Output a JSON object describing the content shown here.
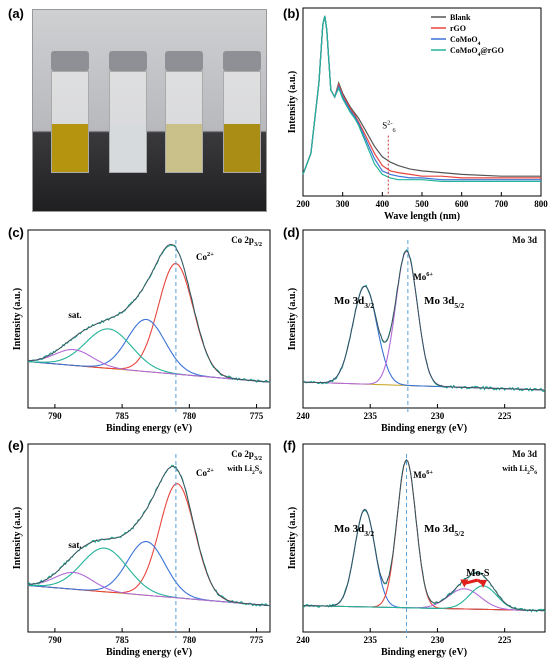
{
  "figure": {
    "panels": [
      {
        "id": "a",
        "label": "(a)"
      },
      {
        "id": "b",
        "label": "(b)"
      },
      {
        "id": "c",
        "label": "(c)"
      },
      {
        "id": "d",
        "label": "(d)"
      },
      {
        "id": "e",
        "label": "(e)"
      },
      {
        "id": "f",
        "label": "(f)"
      }
    ]
  },
  "photo": {
    "vials": [
      {
        "color": "#b59410"
      },
      {
        "color": "#d6dadc"
      },
      {
        "color": "#c9c08a"
      },
      {
        "color": "#a98d14"
      }
    ]
  },
  "chart_data": [
    {
      "id": "b",
      "type": "line",
      "xlabel": "Wave length (nm)",
      "ylabel": "Intensity (a.u.)",
      "xlim": [
        200,
        800
      ],
      "xticks": [
        200,
        300,
        400,
        500,
        600,
        700,
        800
      ],
      "legend_position": "top-right",
      "annotation": {
        "text": "S6 2-",
        "x": 415
      },
      "series": [
        {
          "name": "Blank",
          "color": "#555555",
          "x": [
            200,
            220,
            240,
            250,
            255,
            260,
            270,
            280,
            290,
            300,
            310,
            320,
            330,
            340,
            360,
            380,
            400,
            420,
            440,
            470,
            500,
            550,
            600,
            700,
            800
          ],
          "y": [
            0.1,
            0.22,
            0.62,
            0.95,
            1.0,
            0.92,
            0.58,
            0.54,
            0.62,
            0.56,
            0.52,
            0.48,
            0.45,
            0.42,
            0.34,
            0.26,
            0.2,
            0.17,
            0.15,
            0.13,
            0.12,
            0.11,
            0.1,
            0.09,
            0.09
          ]
        },
        {
          "name": "rGO",
          "color": "#e8453c",
          "x": [
            200,
            220,
            240,
            250,
            255,
            260,
            270,
            280,
            290,
            300,
            310,
            320,
            330,
            340,
            360,
            380,
            400,
            420,
            440,
            470,
            500,
            550,
            600,
            700,
            800
          ],
          "y": [
            0.1,
            0.22,
            0.62,
            0.95,
            1.0,
            0.92,
            0.58,
            0.54,
            0.61,
            0.55,
            0.51,
            0.47,
            0.44,
            0.4,
            0.31,
            0.22,
            0.15,
            0.12,
            0.11,
            0.1,
            0.09,
            0.09,
            0.08,
            0.08,
            0.08
          ]
        },
        {
          "name": "CoMoO4",
          "color": "#3b73d6",
          "x": [
            200,
            220,
            240,
            250,
            255,
            260,
            270,
            280,
            290,
            300,
            310,
            320,
            330,
            340,
            360,
            380,
            400,
            420,
            440,
            470,
            500,
            550,
            600,
            700,
            800
          ],
          "y": [
            0.1,
            0.22,
            0.62,
            0.95,
            1.0,
            0.92,
            0.58,
            0.54,
            0.6,
            0.54,
            0.5,
            0.46,
            0.43,
            0.39,
            0.29,
            0.19,
            0.12,
            0.1,
            0.09,
            0.08,
            0.08,
            0.07,
            0.07,
            0.07,
            0.07
          ]
        },
        {
          "name": "CoMoO4@rGO",
          "color": "#22b39a",
          "x": [
            200,
            220,
            240,
            250,
            255,
            260,
            270,
            280,
            290,
            300,
            310,
            320,
            330,
            340,
            360,
            380,
            400,
            420,
            440,
            470,
            500,
            550,
            600,
            700,
            800
          ],
          "y": [
            0.1,
            0.22,
            0.62,
            0.95,
            1.0,
            0.92,
            0.58,
            0.54,
            0.59,
            0.53,
            0.49,
            0.45,
            0.42,
            0.38,
            0.27,
            0.16,
            0.1,
            0.08,
            0.07,
            0.07,
            0.07,
            0.06,
            0.06,
            0.06,
            0.06
          ]
        }
      ]
    },
    {
      "id": "c",
      "type": "line",
      "title": "Co 2p3/2",
      "xlabel": "Binding energy (eV)",
      "ylabel": "Intensity (a.u.)",
      "xlim": [
        792,
        774
      ],
      "xticks": [
        790,
        785,
        780,
        775
      ],
      "vline": 781,
      "annotations": [
        {
          "text": "Co2+",
          "x": 779.5
        },
        {
          "text": "sat.",
          "x": 788.5
        }
      ],
      "peaks": [
        {
          "name": "Co2+",
          "center": 781.0,
          "height": 0.7,
          "width": 1.3,
          "color": "#e8453c"
        },
        {
          "name": "p2",
          "center": 783.2,
          "height": 0.33,
          "width": 1.4,
          "color": "#3b73d6"
        },
        {
          "name": "p3",
          "center": 786.0,
          "height": 0.25,
          "width": 1.7,
          "color": "#22b39a"
        },
        {
          "name": "sat.",
          "center": 788.6,
          "height": 0.1,
          "width": 1.4,
          "color": "#b36ad6"
        }
      ],
      "baseline": [
        [
          792,
          0.18
        ],
        [
          774,
          0.05
        ]
      ]
    },
    {
      "id": "d",
      "type": "line",
      "title": "Mo 3d",
      "xlabel": "Binding energy (eV)",
      "ylabel": "Intensity (a.u.)",
      "xlim": [
        240,
        222
      ],
      "xticks": [
        240,
        235,
        230,
        225
      ],
      "vline": 232.2,
      "annotations": [
        {
          "text": "Mo6+",
          "x": 231.8
        },
        {
          "text": "Mo 3d3/2",
          "x": 236.2
        },
        {
          "text": "Mo 3d5/2",
          "x": 229.5
        }
      ],
      "peaks": [
        {
          "name": "Mo 3d3/2",
          "center": 235.4,
          "height": 0.62,
          "width": 0.9,
          "color": "#3b73d6"
        },
        {
          "name": "Mo 3d5/2",
          "center": 232.3,
          "height": 0.85,
          "width": 0.8,
          "color": "#b36ad6"
        }
      ],
      "baseline": [
        [
          240,
          0.05
        ],
        [
          222,
          0.0
        ]
      ]
    },
    {
      "id": "e",
      "type": "line",
      "title": "Co 2p3/2",
      "subtitle": "with Li2S6",
      "xlabel": "Binding energy (eV)",
      "ylabel": "Intensity (a.u.)",
      "xlim": [
        792,
        774
      ],
      "xticks": [
        790,
        785,
        780,
        775
      ],
      "vline": 781,
      "annotations": [
        {
          "text": "Co2+",
          "x": 779.5
        },
        {
          "text": "sat.",
          "x": 788.5
        }
      ],
      "peaks": [
        {
          "name": "Co2+",
          "center": 780.9,
          "height": 0.68,
          "width": 1.3,
          "color": "#e8453c"
        },
        {
          "name": "p2",
          "center": 783.2,
          "height": 0.32,
          "width": 1.4,
          "color": "#3b73d6"
        },
        {
          "name": "p3",
          "center": 786.3,
          "height": 0.26,
          "width": 1.7,
          "color": "#22b39a"
        },
        {
          "name": "sat.",
          "center": 788.6,
          "height": 0.1,
          "width": 1.4,
          "color": "#b36ad6"
        }
      ],
      "baseline": [
        [
          792,
          0.17
        ],
        [
          774,
          0.05
        ]
      ]
    },
    {
      "id": "f",
      "type": "line",
      "title": "Mo 3d",
      "subtitle": "with Li2S6",
      "xlabel": "Binding energy (eV)",
      "ylabel": "Intensity (a.u.)",
      "xlim": [
        240,
        222
      ],
      "xticks": [
        240,
        235,
        230,
        225
      ],
      "vline": 232.3,
      "annotations": [
        {
          "text": "Mo6+",
          "x": 231.8
        },
        {
          "text": "Mo 3d3/2",
          "x": 236.2
        },
        {
          "text": "Mo 3d5/2",
          "x": 229.5
        },
        {
          "text": "Mo-S",
          "x": 227
        }
      ],
      "peaks": [
        {
          "name": "Mo 3d3/2",
          "center": 235.4,
          "height": 0.58,
          "width": 0.75,
          "color": "#3b73d6"
        },
        {
          "name": "Mo 3d5/2",
          "center": 232.3,
          "height": 0.88,
          "width": 0.7,
          "color": "#e8453c"
        },
        {
          "name": "Mo-S 1",
          "center": 228.0,
          "height": 0.12,
          "width": 1.2,
          "color": "#b36ad6"
        },
        {
          "name": "Mo-S 2",
          "center": 226.6,
          "height": 0.14,
          "width": 1.0,
          "color": "#22b39a"
        }
      ],
      "baseline": [
        [
          240,
          0.05
        ],
        [
          222,
          0.02
        ]
      ]
    }
  ]
}
